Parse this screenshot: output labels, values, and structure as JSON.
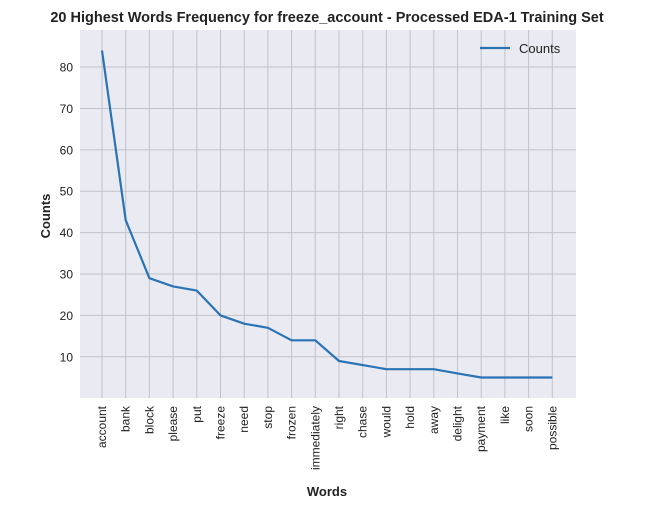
{
  "colors": {
    "plot_background": "#eaeaf2",
    "grid": "#c2c2c8",
    "line": "#2a73b5",
    "text": "#222222"
  },
  "chart_data": {
    "type": "line",
    "title": "20 Highest Words Frequency for freeze_account - Processed EDA-1 Training Set",
    "xlabel": "Words",
    "ylabel": "Counts",
    "categories": [
      "account",
      "bank",
      "block",
      "please",
      "put",
      "freeze",
      "need",
      "stop",
      "frozen",
      "immediately",
      "right",
      "chase",
      "would",
      "hold",
      "away",
      "delight",
      "payment",
      "like",
      "soon",
      "possible"
    ],
    "series": [
      {
        "name": "Counts",
        "values": [
          84,
          43,
          29,
          27,
          26,
          20,
          18,
          17,
          14,
          14,
          9,
          8,
          7,
          7,
          7,
          6,
          5,
          5,
          5,
          5
        ]
      }
    ],
    "yticks": [
      10,
      20,
      30,
      40,
      50,
      60,
      70,
      80
    ],
    "ylim": [
      0.05,
      88.95
    ],
    "grid": true,
    "legend": "top-right"
  }
}
